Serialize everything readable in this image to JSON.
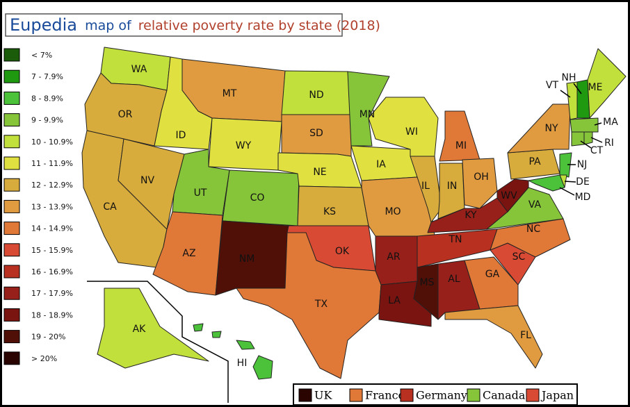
{
  "header": {
    "brand": "Eupedia",
    "title_a": "map of",
    "title_b": "relative poverty rate by state (2018)"
  },
  "legend": [
    {
      "label": "< 7%",
      "color": "#1a5c0a"
    },
    {
      "label": "7 - 7.9%",
      "color": "#1f9a10"
    },
    {
      "label": "8 - 8.9%",
      "color": "#4cc23a"
    },
    {
      "label": "9 - 9.9%",
      "color": "#86c43a"
    },
    {
      "label": "10 - 10.9%",
      "color": "#c2e03c"
    },
    {
      "label": "11 - 11.9%",
      "color": "#e0e040"
    },
    {
      "label": "12 - 12.9%",
      "color": "#d8ac3c"
    },
    {
      "label": "13 - 13.9%",
      "color": "#e09a40"
    },
    {
      "label": "14 - 14.9%",
      "color": "#e07838"
    },
    {
      "label": "15 - 15.9%",
      "color": "#d84a34"
    },
    {
      "label": "16 - 16.9%",
      "color": "#b83020"
    },
    {
      "label": "17 - 17.9%",
      "color": "#98201a"
    },
    {
      "label": "18 - 18.9%",
      "color": "#7a1410"
    },
    {
      "label": "19 - 20%",
      "color": "#501008"
    },
    {
      "label": "> 20%",
      "color": "#2a0400"
    }
  ],
  "countries": [
    {
      "name": "UK",
      "color": "#2a0400"
    },
    {
      "name": "France",
      "color": "#e07838"
    },
    {
      "name": "Germany",
      "color": "#b83020"
    },
    {
      "name": "Canada",
      "color": "#86c43a"
    },
    {
      "name": "Japan",
      "color": "#d84a34"
    }
  ],
  "states": [
    {
      "label": "WA",
      "color": "#c2e03c"
    },
    {
      "label": "OR",
      "color": "#d8ac3c"
    },
    {
      "label": "CA",
      "color": "#d8ac3c"
    },
    {
      "label": "NV",
      "color": "#d8ac3c"
    },
    {
      "label": "ID",
      "color": "#e0e040"
    },
    {
      "label": "MT",
      "color": "#e09a40"
    },
    {
      "label": "WY",
      "color": "#e0e040"
    },
    {
      "label": "UT",
      "color": "#86c43a"
    },
    {
      "label": "CO",
      "color": "#86c43a"
    },
    {
      "label": "AZ",
      "color": "#e07838"
    },
    {
      "label": "NM",
      "color": "#501008"
    },
    {
      "label": "ND",
      "color": "#c2e03c"
    },
    {
      "label": "SD",
      "color": "#e09a40"
    },
    {
      "label": "NE",
      "color": "#e0e040"
    },
    {
      "label": "KS",
      "color": "#d8ac3c"
    },
    {
      "label": "OK",
      "color": "#d84a34"
    },
    {
      "label": "TX",
      "color": "#e07838"
    },
    {
      "label": "MN",
      "color": "#86c43a"
    },
    {
      "label": "IA",
      "color": "#e0e040"
    },
    {
      "label": "MO",
      "color": "#e09a40"
    },
    {
      "label": "AR",
      "color": "#98201a"
    },
    {
      "label": "LA",
      "color": "#7a1410"
    },
    {
      "label": "WI",
      "color": "#e0e040"
    },
    {
      "label": "IL",
      "color": "#d8ac3c"
    },
    {
      "label": "MI",
      "color": "#e07838"
    },
    {
      "label": "IN",
      "color": "#d8ac3c"
    },
    {
      "label": "OH",
      "color": "#e09a40"
    },
    {
      "label": "KY",
      "color": "#98201a"
    },
    {
      "label": "TN",
      "color": "#b83020"
    },
    {
      "label": "MS",
      "color": "#501008"
    },
    {
      "label": "AL",
      "color": "#98201a"
    },
    {
      "label": "GA",
      "color": "#e07838"
    },
    {
      "label": "FL",
      "color": "#e09a40"
    },
    {
      "label": "SC",
      "color": "#d84a34"
    },
    {
      "label": "NC",
      "color": "#e07838"
    },
    {
      "label": "VA",
      "color": "#86c43a"
    },
    {
      "label": "WV",
      "color": "#7a1410"
    },
    {
      "label": "PA",
      "color": "#d8ac3c"
    },
    {
      "label": "NY",
      "color": "#e09a40"
    },
    {
      "label": "VT",
      "color": "#c2e03c"
    },
    {
      "label": "NH",
      "color": "#1f9a10"
    },
    {
      "label": "ME",
      "color": "#c2e03c"
    },
    {
      "label": "MA",
      "color": "#86c43a"
    },
    {
      "label": "RI",
      "color": "#86c43a"
    },
    {
      "label": "CT",
      "color": "#86c43a"
    },
    {
      "label": "NJ",
      "color": "#4cc23a"
    },
    {
      "label": "DE",
      "color": "#c2e03c"
    },
    {
      "label": "MD",
      "color": "#4cc23a"
    },
    {
      "label": "AK",
      "color": "#c2e03c"
    },
    {
      "label": "HI",
      "color": "#4cc23a"
    }
  ]
}
